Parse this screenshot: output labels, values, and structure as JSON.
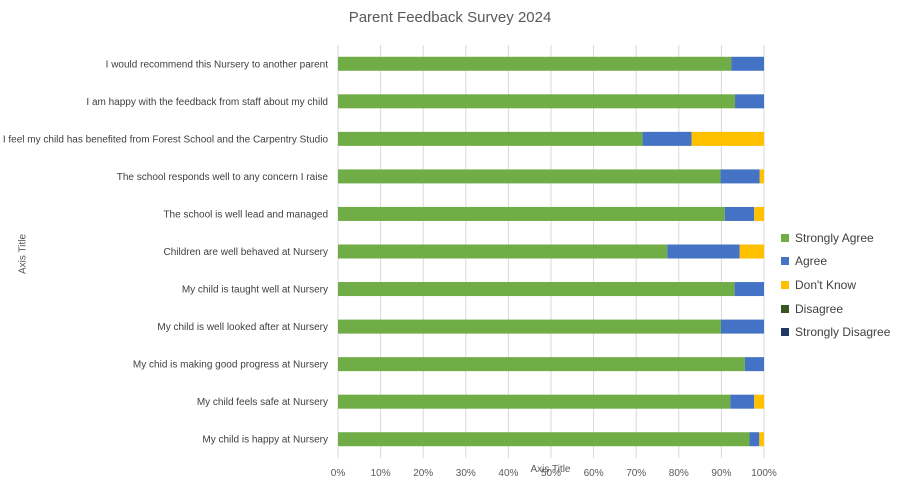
{
  "chart_data": {
    "type": "bar",
    "orientation": "horizontal",
    "stacked": "percent",
    "title": "Parent Feedback Survey 2024",
    "xlabel": "Axis Title",
    "ylabel": "Axis Title",
    "xlim": [
      0,
      100
    ],
    "x_ticks": [
      "0%",
      "10%",
      "20%",
      "30%",
      "40%",
      "50%",
      "60%",
      "70%",
      "80%",
      "90%",
      "100%"
    ],
    "grid": true,
    "legend_position": "right",
    "categories": [
      "I would recommend this Nursery to another parent",
      "I am happy with the feedback from staff about my child",
      "I feel my child has benefited from Forest School and the Carpentry Studio",
      "The school responds well to any concern I raise",
      "The school is well lead and managed",
      "Children are well behaved at Nursery",
      "My child is taught well at Nursery",
      "My child is well looked after at Nursery",
      "My chid is making good progress at Nursery",
      "My child feels safe at Nursery",
      "My child is happy at Nursery"
    ],
    "series": [
      {
        "name": "Strongly Agree",
        "color": "#70AD47",
        "values": [
          92.3,
          93.2,
          71.5,
          89.8,
          90.8,
          77.3,
          93.1,
          89.9,
          95.5,
          92.1,
          96.6
        ]
      },
      {
        "name": "Agree",
        "color": "#4472C4",
        "values": [
          7.7,
          6.8,
          11.5,
          9.2,
          6.9,
          17.0,
          6.9,
          10.1,
          4.5,
          5.6,
          2.3
        ]
      },
      {
        "name": "Don't Know",
        "color": "#FFC000",
        "values": [
          0,
          0,
          17.0,
          1.0,
          2.3,
          5.7,
          0,
          0,
          0,
          2.3,
          1.1
        ]
      },
      {
        "name": "Disagree",
        "color": "#375623",
        "values": [
          0,
          0,
          0,
          0,
          0,
          0,
          0,
          0,
          0,
          0,
          0
        ]
      },
      {
        "name": "Strongly Disagree",
        "color": "#1F3864",
        "values": [
          0,
          0,
          0,
          0,
          0,
          0,
          0,
          0,
          0,
          0,
          0
        ]
      }
    ]
  }
}
